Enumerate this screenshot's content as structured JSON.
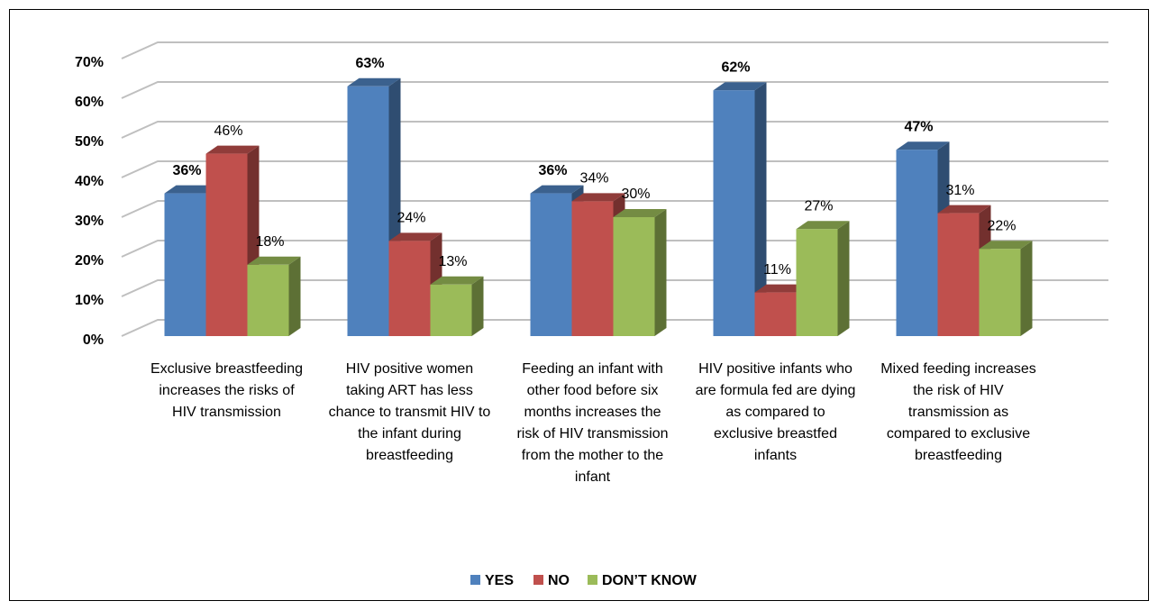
{
  "chart_data": {
    "type": "bar3d",
    "categories": [
      "Exclusive breastfeeding increases the risks of HIV transmission",
      "HIV positive women taking ART has less chance to transmit HIV to the infant during breastfeeding",
      "Feeding an infant with other food before six months increases the risk of HIV transmission from the mother to the infant",
      "HIV positive infants who are formula fed are dying as compared to exclusive breastfed infants",
      "Mixed feeding increases the risk of HIV transmission as compared to exclusive breastfeeding"
    ],
    "series": [
      {
        "name": "YES",
        "color": "#4f81bd",
        "values": [
          36,
          63,
          36,
          62,
          47
        ],
        "value_labels": [
          "36%",
          "63%",
          "36%",
          "62%",
          "47%"
        ]
      },
      {
        "name": "NO",
        "color": "#c0504d",
        "values": [
          46,
          24,
          34,
          11,
          31
        ],
        "value_labels": [
          "46%",
          "24%",
          "34%",
          "11%",
          "31%"
        ]
      },
      {
        "name": "DON’T KNOW",
        "color": "#9bbb59",
        "values": [
          18,
          13,
          30,
          27,
          22
        ],
        "value_labels": [
          "18%",
          "13%",
          "30%",
          "27%",
          "22%"
        ]
      }
    ],
    "ylim": [
      0,
      70
    ],
    "yticks": [
      {
        "value": 0,
        "label": "0%"
      },
      {
        "value": 10,
        "label": "10%"
      },
      {
        "value": 20,
        "label": "20%"
      },
      {
        "value": 30,
        "label": "30%"
      },
      {
        "value": 40,
        "label": "40%"
      },
      {
        "value": 50,
        "label": "50%"
      },
      {
        "value": 60,
        "label": "60%"
      },
      {
        "value": 70,
        "label": "70%"
      }
    ],
    "grid": true,
    "legend": "bottom"
  }
}
